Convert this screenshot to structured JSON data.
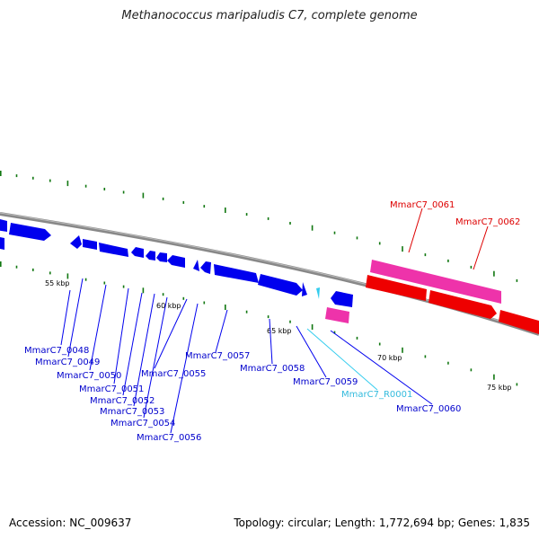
{
  "title": "Methanococcus maripaludis C7, complete genome",
  "footer": {
    "accession": "Accession: NC_009637",
    "topology": "Topology: circular; Length: 1,772,694 bp; Genes: 1,835"
  },
  "colors": {
    "backbone": "#888888",
    "gene_forward_strand": "#0000ee",
    "rna": "#33ccee",
    "highlight_pink": "#ee33aa",
    "highlight_red": "#ee0000",
    "tick_marks": "#117711"
  },
  "scale_ticks": [
    "55 kbp",
    "60 kbp",
    "65 kbp",
    "70 kbp",
    "75 kbp"
  ],
  "gene_labels": [
    {
      "text": "MmarC7_0048",
      "type": "cds"
    },
    {
      "text": "MmarC7_0049",
      "type": "cds"
    },
    {
      "text": "MmarC7_0050",
      "type": "cds"
    },
    {
      "text": "MmarC7_0051",
      "type": "cds"
    },
    {
      "text": "MmarC7_0052",
      "type": "cds"
    },
    {
      "text": "MmarC7_0053",
      "type": "cds"
    },
    {
      "text": "MmarC7_0054",
      "type": "cds"
    },
    {
      "text": "MmarC7_0055",
      "type": "cds"
    },
    {
      "text": "MmarC7_0056",
      "type": "cds"
    },
    {
      "text": "MmarC7_0057",
      "type": "cds"
    },
    {
      "text": "MmarC7_0058",
      "type": "cds"
    },
    {
      "text": "MmarC7_0059",
      "type": "cds"
    },
    {
      "text": "MmarC7_R0001",
      "type": "rna"
    },
    {
      "text": "MmarC7_0060",
      "type": "cds"
    },
    {
      "text": "MmarC7_0061",
      "type": "highlight"
    },
    {
      "text": "MmarC7_0062",
      "type": "highlight"
    }
  ]
}
